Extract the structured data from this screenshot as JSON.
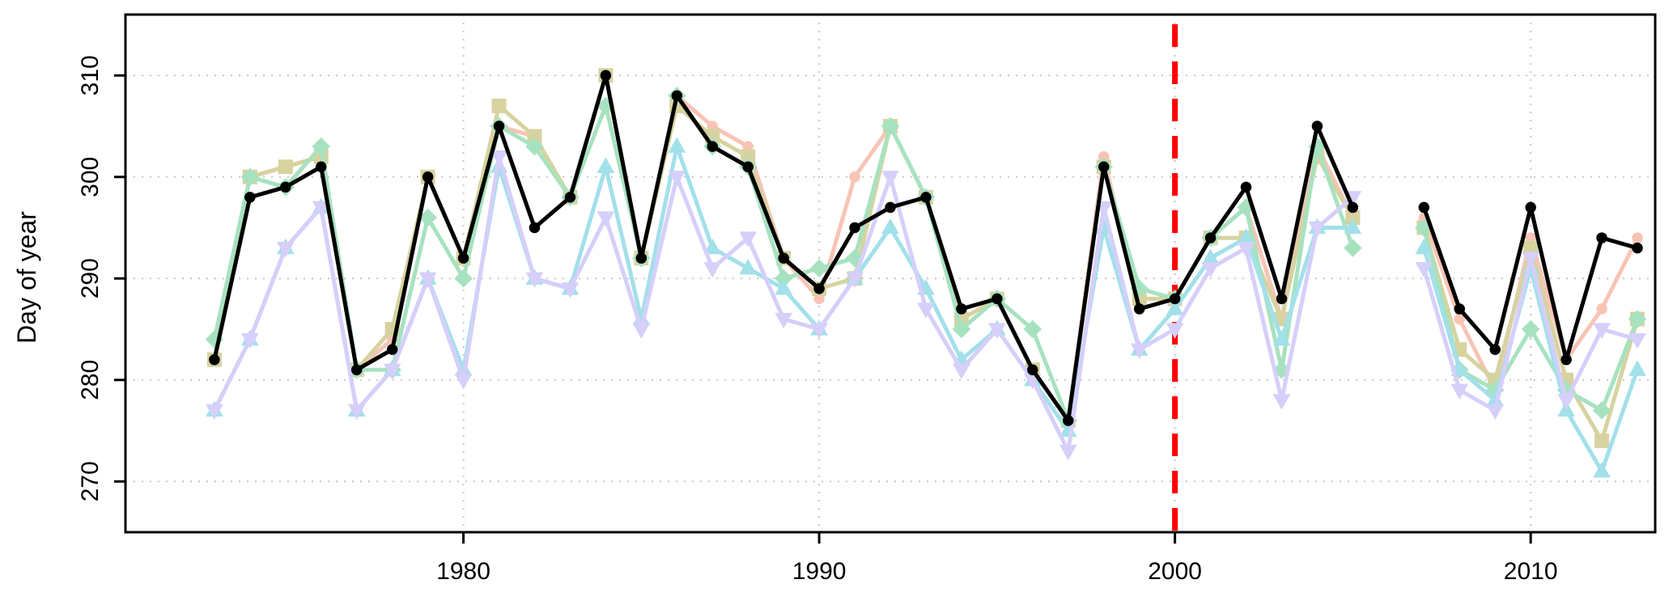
{
  "chart_data": {
    "type": "line",
    "title": "",
    "xlabel": "",
    "ylabel": "Day of year",
    "xlim": [
      1970.5,
      2013.5
    ],
    "ylim": [
      265,
      316
    ],
    "xticks": [
      1980,
      1990,
      2000,
      2010
    ],
    "yticks": [
      270,
      280,
      290,
      300,
      310
    ],
    "grid": true,
    "legend": "none",
    "vline": {
      "x": 2000,
      "color": "#ff0000",
      "style": "dashed"
    },
    "series": [
      {
        "color": "#f7c4b6",
        "marker": "circle",
        "points": [
          [
            1973,
            282
          ],
          [
            1974,
            300
          ],
          [
            1975,
            301
          ],
          [
            1976,
            302
          ],
          [
            1977,
            281
          ],
          [
            1978,
            284
          ],
          [
            1979,
            300
          ],
          [
            1980,
            292
          ],
          [
            1981,
            305
          ],
          [
            1982,
            304
          ],
          [
            1983,
            298
          ],
          [
            1984,
            310
          ],
          [
            1985,
            292
          ],
          [
            1986,
            308
          ],
          [
            1987,
            305
          ],
          [
            1988,
            303
          ],
          [
            1989,
            292
          ],
          [
            1990,
            288
          ],
          [
            1991,
            300
          ],
          [
            1992,
            305
          ],
          [
            1993,
            298
          ],
          [
            1994,
            287
          ],
          [
            1995,
            288
          ],
          [
            1996,
            281
          ],
          [
            1997,
            276
          ],
          [
            1998,
            302
          ],
          [
            1999,
            287
          ],
          [
            2000,
            288
          ],
          [
            2001,
            294
          ],
          [
            2002,
            297
          ],
          [
            2003,
            286
          ],
          [
            2004,
            303
          ],
          [
            2005,
            296
          ],
          [
            null,
            null
          ],
          [
            2007,
            296
          ],
          [
            2008,
            286
          ],
          [
            2009,
            279
          ],
          [
            2010,
            294
          ],
          [
            2011,
            282
          ],
          [
            2012,
            287
          ],
          [
            2013,
            294
          ]
        ]
      },
      {
        "color": "#d6d3a0",
        "marker": "square",
        "points": [
          [
            1973,
            282
          ],
          [
            1974,
            300
          ],
          [
            1975,
            301
          ],
          [
            1976,
            302
          ],
          [
            1977,
            281
          ],
          [
            1978,
            285
          ],
          [
            1979,
            300
          ],
          [
            1980,
            292
          ],
          [
            1981,
            307
          ],
          [
            1982,
            304
          ],
          [
            1983,
            298
          ],
          [
            1984,
            310
          ],
          [
            1985,
            292
          ],
          [
            1986,
            307
          ],
          [
            1987,
            304
          ],
          [
            1988,
            302
          ],
          [
            1989,
            292
          ],
          [
            1990,
            289
          ],
          [
            1991,
            290
          ],
          [
            1992,
            305
          ],
          [
            1993,
            298
          ],
          [
            1994,
            286
          ],
          [
            1995,
            288
          ],
          [
            1996,
            281
          ],
          [
            1997,
            276
          ],
          [
            1998,
            301
          ],
          [
            1999,
            288
          ],
          [
            2000,
            288
          ],
          [
            2001,
            294
          ],
          [
            2002,
            294
          ],
          [
            2003,
            286
          ],
          [
            2004,
            302
          ],
          [
            2005,
            296
          ],
          [
            null,
            null
          ],
          [
            2007,
            295
          ],
          [
            2008,
            283
          ],
          [
            2009,
            280
          ],
          [
            2010,
            293
          ],
          [
            2011,
            280
          ],
          [
            2012,
            274
          ],
          [
            2013,
            286
          ]
        ]
      },
      {
        "color": "#a7e2c0",
        "marker": "diamond",
        "points": [
          [
            1973,
            284
          ],
          [
            1974,
            300
          ],
          [
            1975,
            299
          ],
          [
            1976,
            303
          ],
          [
            1977,
            281
          ],
          [
            1978,
            281
          ],
          [
            1979,
            296
          ],
          [
            1980,
            290
          ],
          [
            1981,
            305
          ],
          [
            1982,
            303
          ],
          [
            1983,
            298
          ],
          [
            1984,
            307
          ],
          [
            1985,
            292
          ],
          [
            1986,
            308
          ],
          [
            1987,
            303
          ],
          [
            1988,
            301
          ],
          [
            1989,
            290
          ],
          [
            1990,
            291
          ],
          [
            1991,
            292
          ],
          [
            1992,
            305
          ],
          [
            1993,
            298
          ],
          [
            1994,
            285
          ],
          [
            1995,
            288
          ],
          [
            1996,
            285
          ],
          [
            1997,
            276
          ],
          [
            1998,
            301
          ],
          [
            1999,
            289
          ],
          [
            2000,
            288
          ],
          [
            2001,
            294
          ],
          [
            2002,
            297
          ],
          [
            2003,
            281
          ],
          [
            2004,
            303
          ],
          [
            2005,
            293
          ],
          [
            null,
            null
          ],
          [
            2007,
            295
          ],
          [
            2008,
            281
          ],
          [
            2009,
            279
          ],
          [
            2010,
            285
          ],
          [
            2011,
            279
          ],
          [
            2012,
            277
          ],
          [
            2013,
            286
          ]
        ]
      },
      {
        "color": "#a2e0ea",
        "marker": "triangle-up",
        "points": [
          [
            1973,
            277
          ],
          [
            1974,
            284
          ],
          [
            1975,
            293
          ],
          [
            1976,
            297
          ],
          [
            1977,
            277
          ],
          [
            1978,
            281
          ],
          [
            1979,
            290
          ],
          [
            1980,
            281
          ],
          [
            1981,
            301
          ],
          [
            1982,
            290
          ],
          [
            1983,
            289
          ],
          [
            1984,
            301
          ],
          [
            1985,
            286
          ],
          [
            1986,
            303
          ],
          [
            1987,
            293
          ],
          [
            1988,
            291
          ],
          [
            1989,
            289
          ],
          [
            1990,
            285
          ],
          [
            1991,
            290
          ],
          [
            1992,
            295
          ],
          [
            1993,
            289
          ],
          [
            1994,
            282
          ],
          [
            1995,
            285
          ],
          [
            1996,
            280
          ],
          [
            1997,
            275
          ],
          [
            1998,
            295
          ],
          [
            1999,
            283
          ],
          [
            2000,
            287
          ],
          [
            2001,
            292
          ],
          [
            2002,
            294
          ],
          [
            2003,
            284
          ],
          [
            2004,
            295
          ],
          [
            2005,
            295
          ],
          [
            null,
            null
          ],
          [
            2007,
            293
          ],
          [
            2008,
            281
          ],
          [
            2009,
            278
          ],
          [
            2010,
            291
          ],
          [
            2011,
            277
          ],
          [
            2012,
            271
          ],
          [
            2013,
            281
          ]
        ]
      },
      {
        "color": "#d5cffa",
        "marker": "triangle-down",
        "points": [
          [
            1973,
            277
          ],
          [
            1974,
            284
          ],
          [
            1975,
            293
          ],
          [
            1976,
            297
          ],
          [
            1977,
            277
          ],
          [
            1978,
            281
          ],
          [
            1979,
            290
          ],
          [
            1980,
            280
          ],
          [
            1981,
            302
          ],
          [
            1982,
            290
          ],
          [
            1983,
            289
          ],
          [
            1984,
            296
          ],
          [
            1985,
            285
          ],
          [
            1986,
            300
          ],
          [
            1987,
            291
          ],
          [
            1988,
            294
          ],
          [
            1989,
            286
          ],
          [
            1990,
            285
          ],
          [
            1991,
            290
          ],
          [
            1992,
            300
          ],
          [
            1993,
            287
          ],
          [
            1994,
            281
          ],
          [
            1995,
            285
          ],
          [
            1996,
            280
          ],
          [
            1997,
            273
          ],
          [
            1998,
            297
          ],
          [
            1999,
            283
          ],
          [
            2000,
            285
          ],
          [
            2001,
            291
          ],
          [
            2002,
            293
          ],
          [
            2003,
            278
          ],
          [
            2004,
            295
          ],
          [
            2005,
            298
          ],
          [
            null,
            null
          ],
          [
            2007,
            291
          ],
          [
            2008,
            279
          ],
          [
            2009,
            277
          ],
          [
            2010,
            292
          ],
          [
            2011,
            278
          ],
          [
            2012,
            285
          ],
          [
            2013,
            284
          ]
        ]
      },
      {
        "color": "#000000",
        "marker": "circle",
        "points": [
          [
            1973,
            282
          ],
          [
            1974,
            298
          ],
          [
            1975,
            299
          ],
          [
            1976,
            301
          ],
          [
            1977,
            281
          ],
          [
            1978,
            283
          ],
          [
            1979,
            300
          ],
          [
            1980,
            292
          ],
          [
            1981,
            305
          ],
          [
            1982,
            295
          ],
          [
            1983,
            298
          ],
          [
            1984,
            310
          ],
          [
            1985,
            292
          ],
          [
            1986,
            308
          ],
          [
            1987,
            303
          ],
          [
            1988,
            301
          ],
          [
            1989,
            292
          ],
          [
            1990,
            289
          ],
          [
            1991,
            295
          ],
          [
            1992,
            297
          ],
          [
            1993,
            298
          ],
          [
            1994,
            287
          ],
          [
            1995,
            288
          ],
          [
            1996,
            281
          ],
          [
            1997,
            276
          ],
          [
            1998,
            301
          ],
          [
            1999,
            287
          ],
          [
            2000,
            288
          ],
          [
            2001,
            294
          ],
          [
            2002,
            299
          ],
          [
            2003,
            288
          ],
          [
            2004,
            305
          ],
          [
            2005,
            297
          ],
          [
            null,
            null
          ],
          [
            2007,
            297
          ],
          [
            2008,
            287
          ],
          [
            2009,
            283
          ],
          [
            2010,
            297
          ],
          [
            2011,
            282
          ],
          [
            2012,
            294
          ],
          [
            2013,
            293
          ]
        ]
      }
    ]
  }
}
